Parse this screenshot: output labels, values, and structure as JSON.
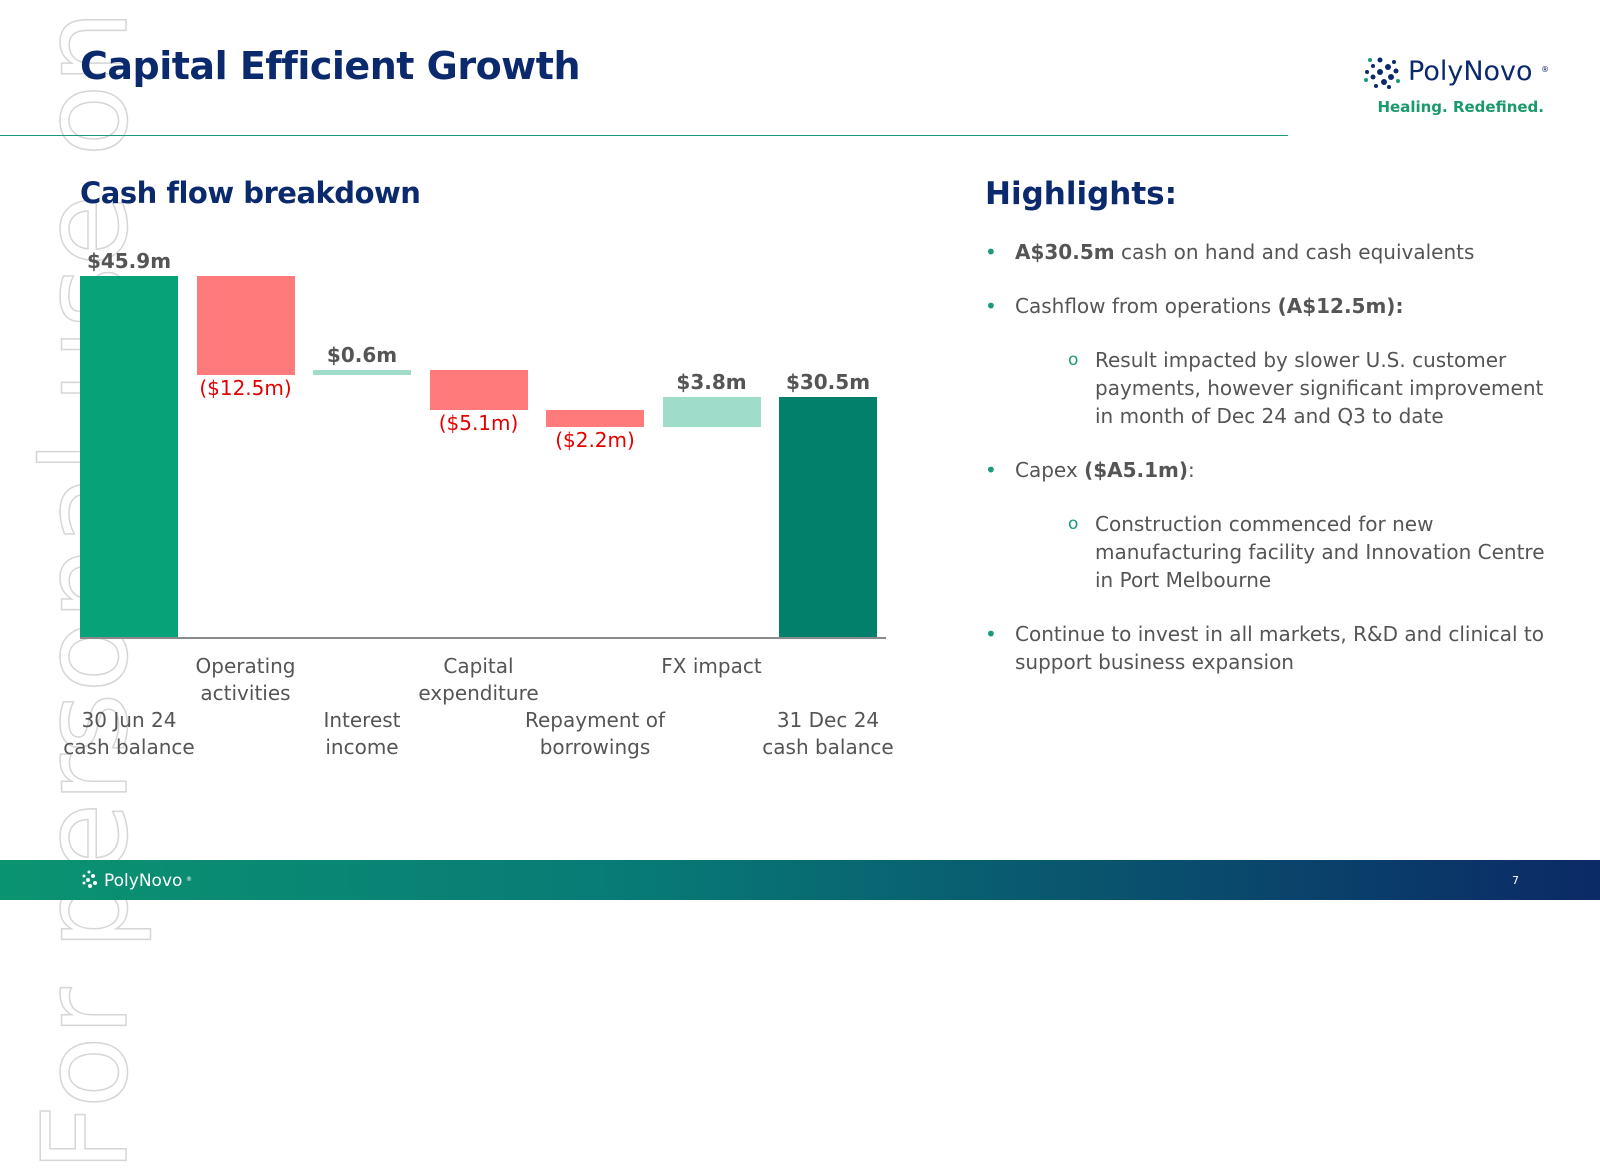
{
  "header": {
    "title": "Capital Efficient Growth",
    "logo": "PolyNovo",
    "logo_mark": "®",
    "tagline": "Healing. Redefined."
  },
  "watermark": "For personal use only",
  "chart_data": {
    "type": "waterfall",
    "title": "Cash flow breakdown",
    "categories": [
      "30 Jun 24\ncash balance",
      "Operating\nactivities",
      "Interest\nincome",
      "Capital\nexpenditure",
      "Repayment of\nborrowings",
      "FX impact",
      "31 Dec 24\ncash balance"
    ],
    "measure": [
      "absolute",
      "relative",
      "relative",
      "relative",
      "relative",
      "relative",
      "total"
    ],
    "values": [
      45.9,
      -12.5,
      0.6,
      -5.1,
      -2.2,
      3.8,
      30.5
    ],
    "value_labels": [
      "$45.9m",
      "($12.5m)",
      "$0.6m",
      "($5.1m)",
      "($2.2m)",
      "$3.8m",
      "$30.5m"
    ],
    "colors": [
      "#07a277",
      "#ff7a7a",
      "#9fdcc9",
      "#ff7a7a",
      "#ff7a7a",
      "#9fdcc9",
      "#02806b"
    ]
  },
  "highlights": {
    "title": "Highlights:",
    "items": [
      {
        "parts": [
          {
            "text": "A$30.5m",
            "bold": true
          },
          {
            "text": " cash on hand and cash equivalents"
          }
        ]
      },
      {
        "parts": [
          {
            "text": "Cashflow from operations "
          },
          {
            "text": "(A$12.5m):",
            "bold": true
          }
        ],
        "sub": [
          "Result impacted by slower U.S. customer payments, however significant improvement in month of Dec 24 and Q3 to date"
        ]
      },
      {
        "parts": [
          {
            "text": "Capex "
          },
          {
            "text": "($A5.1m)",
            "bold": true
          },
          {
            "text": ":"
          }
        ],
        "sub": [
          "Construction commenced for new manufacturing facility and Innovation Centre in Port Melbourne"
        ]
      },
      {
        "parts": [
          {
            "text": "Continue to invest in all markets, R&D and clinical to support business expansion"
          }
        ]
      }
    ]
  },
  "footer": {
    "logo": "PolyNovo",
    "logo_mark": "®",
    "page": "7"
  }
}
